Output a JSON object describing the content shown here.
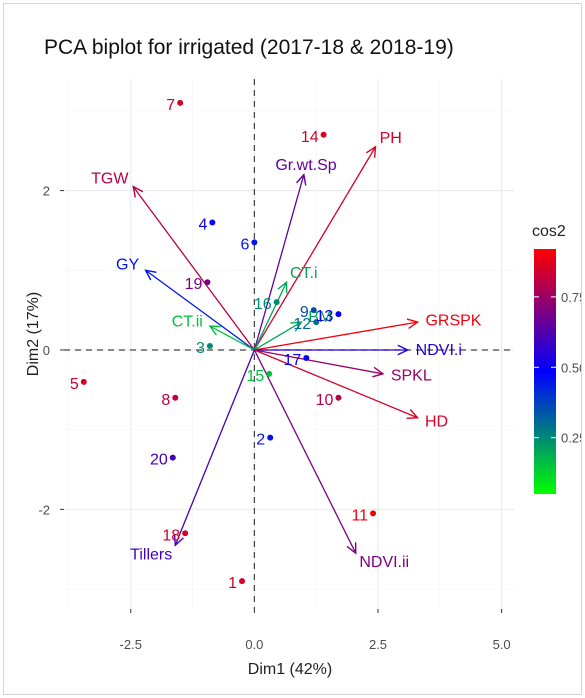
{
  "chart_data": {
    "type": "scatter",
    "subtype": "pca-biplot",
    "title": "PCA biplot for irrigated (2017-18 & 2018-19)",
    "xlabel": "Dim1 (42%)",
    "ylabel": "Dim2 (17%)",
    "xlim": [
      -3.85,
      5.25
    ],
    "ylim": [
      -3.25,
      3.4
    ],
    "xticks": [
      -2.5,
      0.0,
      2.5,
      5.0
    ],
    "xtick_labels": [
      "-2.5",
      "0.0",
      "2.5",
      "5.0"
    ],
    "yticks": [
      -2,
      0,
      2
    ],
    "ytick_labels": [
      "-2",
      "0",
      "2"
    ],
    "grid": true,
    "reference_lines": [
      {
        "axis": "x",
        "value": 0,
        "style": "dashed"
      },
      {
        "axis": "y",
        "value": 0,
        "style": "dashed"
      }
    ],
    "legend": {
      "title": "cos2",
      "position": "right",
      "ticks": [
        0.25,
        0.5,
        0.75
      ],
      "tick_labels": [
        "0.25",
        "0.50",
        "0.75"
      ],
      "range": [
        0.05,
        0.92
      ],
      "colors": [
        "#00ff00",
        "#0000ff",
        "#ff0000"
      ]
    },
    "individuals": [
      {
        "label": "1",
        "x": -0.25,
        "y": -2.9,
        "cos2": 0.85
      },
      {
        "label": "2",
        "x": 0.32,
        "y": -1.1,
        "cos2": 0.45
      },
      {
        "label": "3",
        "x": -0.9,
        "y": 0.05,
        "cos2": 0.25
      },
      {
        "label": "4",
        "x": -0.85,
        "y": 1.6,
        "cos2": 0.5
      },
      {
        "label": "5",
        "x": -3.45,
        "y": -0.4,
        "cos2": 0.85
      },
      {
        "label": "6",
        "x": 0.0,
        "y": 1.35,
        "cos2": 0.45
      },
      {
        "label": "7",
        "x": -1.5,
        "y": 3.1,
        "cos2": 0.85
      },
      {
        "label": "8",
        "x": -1.6,
        "y": -0.6,
        "cos2": 0.8
      },
      {
        "label": "9",
        "x": 1.2,
        "y": 0.5,
        "cos2": 0.35
      },
      {
        "label": "10",
        "x": 1.7,
        "y": -0.6,
        "cos2": 0.8
      },
      {
        "label": "11",
        "x": 2.4,
        "y": -2.05,
        "cos2": 0.9
      },
      {
        "label": "12",
        "x": 1.25,
        "y": 0.35,
        "cos2": 0.3
      },
      {
        "label": "13",
        "x": 1.7,
        "y": 0.45,
        "cos2": 0.5
      },
      {
        "label": "14",
        "x": 1.4,
        "y": 2.7,
        "cos2": 0.85
      },
      {
        "label": "15",
        "x": 0.3,
        "y": -0.3,
        "cos2": 0.15
      },
      {
        "label": "16",
        "x": 0.45,
        "y": 0.6,
        "cos2": 0.25
      },
      {
        "label": "17",
        "x": 1.05,
        "y": -0.1,
        "cos2": 0.5
      },
      {
        "label": "18",
        "x": -1.4,
        "y": -2.3,
        "cos2": 0.85
      },
      {
        "label": "19",
        "x": -0.95,
        "y": 0.85,
        "cos2": 0.7
      },
      {
        "label": "20",
        "x": -1.65,
        "y": -1.35,
        "cos2": 0.6
      }
    ],
    "variables": [
      {
        "label": "PH",
        "x": 2.45,
        "y": 2.55,
        "cos2": 0.85
      },
      {
        "label": "Gr.wt.Sp",
        "x": 1.0,
        "y": 2.2,
        "cos2": 0.65
      },
      {
        "label": "TGW",
        "x": -2.45,
        "y": 2.05,
        "cos2": 0.8
      },
      {
        "label": "GY",
        "x": -2.2,
        "y": 1.0,
        "cos2": 0.45
      },
      {
        "label": "CT.i",
        "x": 0.65,
        "y": 0.85,
        "cos2": 0.2
      },
      {
        "label": "CT.ii",
        "x": -0.9,
        "y": 0.3,
        "cos2": 0.15
      },
      {
        "label": "BM",
        "x": 0.95,
        "y": 0.35,
        "cos2": 0.2
      },
      {
        "label": "GRSPK",
        "x": 3.3,
        "y": 0.35,
        "cos2": 0.9
      },
      {
        "label": "NDVI.i",
        "x": 3.1,
        "y": 0.0,
        "cos2": 0.55
      },
      {
        "label": "SPKL",
        "x": 2.6,
        "y": -0.3,
        "cos2": 0.75
      },
      {
        "label": "HD",
        "x": 3.3,
        "y": -0.85,
        "cos2": 0.85
      },
      {
        "label": "NDVI.ii",
        "x": 2.05,
        "y": -2.55,
        "cos2": 0.7
      },
      {
        "label": "Tillers",
        "x": -1.6,
        "y": -2.45,
        "cos2": 0.6
      }
    ]
  }
}
